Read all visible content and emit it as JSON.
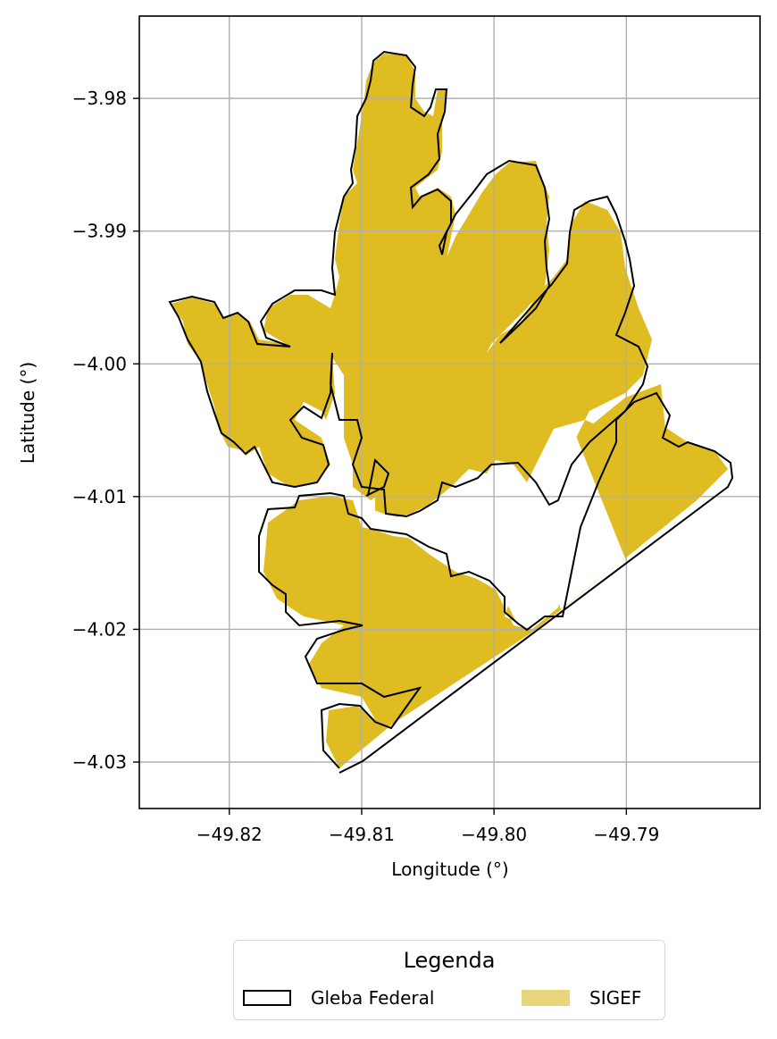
{
  "chart_data": {
    "type": "map",
    "title": "",
    "xlabel": "Longitude (°)",
    "ylabel": "Latitude (°)",
    "xlim": [
      -49.8268,
      -49.7799
    ],
    "ylim": [
      -4.0335,
      -3.9738
    ],
    "xticks": [
      -49.82,
      -49.81,
      -49.8,
      -49.79
    ],
    "xtick_labels": [
      "−49.82",
      "−49.81",
      "−49.80",
      "−49.79"
    ],
    "yticks": [
      -3.98,
      -3.99,
      -4.0,
      -4.01,
      -4.02,
      -4.03
    ],
    "ytick_labels": [
      "−3.98",
      "−3.99",
      "−4.00",
      "−4.01",
      "−4.02",
      "−4.03"
    ],
    "grid": true,
    "legend_placement": "bottom-center, below axes",
    "series": [
      {
        "name": "Gleba Federal",
        "style": "outline",
        "edge_color": "#000000",
        "polygon": [
          [
            -49.8114,
            -4.0306
          ],
          [
            -49.813,
            -4.0289
          ],
          [
            -49.8139,
            -4.0265
          ],
          [
            -49.8124,
            -4.0254
          ],
          [
            -49.8093,
            -4.0258
          ],
          [
            -49.8081,
            -4.0275
          ],
          [
            -49.8071,
            -4.0279
          ],
          [
            -49.809,
            -4.0246
          ],
          [
            -49.8141,
            -4.0243
          ],
          [
            -49.815,
            -4.0225
          ],
          [
            -49.8142,
            -4.0207
          ],
          [
            -49.8121,
            -4.0197
          ],
          [
            -49.8132,
            -4.0198
          ],
          [
            -49.8146,
            -4.0202
          ],
          [
            -49.8163,
            -4.0188
          ],
          [
            -49.8176,
            -4.0176
          ],
          [
            -49.818,
            -4.0155
          ],
          [
            -49.8174,
            -4.013
          ],
          [
            -49.816,
            -4.0106
          ],
          [
            -49.814,
            -4.0103
          ],
          [
            -49.8127,
            -4.0102
          ],
          [
            -49.8115,
            -4.0095
          ],
          [
            -49.8093,
            -4.0123
          ],
          [
            -49.8063,
            -4.0129
          ],
          [
            -49.8025,
            -4.0136
          ],
          [
            -49.8003,
            -4.0143
          ],
          [
            -49.797,
            -4.0156
          ],
          [
            -49.798,
            -4.0174
          ],
          [
            -49.8022,
            -4.0143
          ],
          [
            -49.8039,
            -4.0142
          ],
          [
            -49.807,
            -4.0138
          ],
          [
            -49.8101,
            -4.0104
          ],
          [
            -49.81,
            -4.0078
          ],
          [
            -49.8087,
            -4.0065
          ],
          [
            -49.804,
            -4.009
          ],
          [
            -49.8003,
            -4.0084
          ],
          [
            -49.796,
            -4.0071
          ],
          [
            -49.7932,
            -4.0047
          ],
          [
            -49.7896,
            -4.0027
          ],
          [
            -49.7877,
            -4.0002
          ],
          [
            -49.7858,
            -3.999
          ],
          [
            -49.7875,
            -3.998
          ],
          [
            -49.79,
            -3.9965
          ],
          [
            -49.7896,
            -3.9925
          ],
          [
            -49.7906,
            -3.9895
          ],
          [
            -49.7921,
            -3.9872
          ],
          [
            -49.7932,
            -3.986
          ],
          [
            -49.7958,
            -3.9842
          ],
          [
            -49.799,
            -3.9832
          ],
          [
            -49.8015,
            -3.9862
          ],
          [
            -49.8036,
            -3.9857
          ],
          [
            -49.8047,
            -3.9842
          ],
          [
            -49.8061,
            -3.9853
          ],
          [
            -49.8084,
            -3.9855
          ],
          [
            -49.8098,
            -3.9814
          ],
          [
            -49.808,
            -3.9775
          ],
          [
            -49.808,
            -3.976
          ],
          [
            -49.8102,
            -3.9757
          ],
          [
            -49.8123,
            -3.9793
          ],
          [
            -49.813,
            -3.982
          ],
          [
            -49.8158,
            -3.9845
          ],
          [
            -49.8178,
            -3.9882
          ],
          [
            -49.8195,
            -3.991
          ],
          [
            -49.8221,
            -3.9918
          ],
          [
            -49.825,
            -3.9955
          ],
          [
            -49.824,
            -3.996
          ],
          [
            -49.8203,
            -3.9967
          ],
          [
            -49.8197,
            -3.999
          ],
          [
            -49.8196,
            -4.003
          ],
          [
            -49.8186,
            -4.0056
          ],
          [
            -49.8171,
            -4.0078
          ],
          [
            -49.8141,
            -4.0089
          ],
          [
            -49.8123,
            -4.0056
          ],
          [
            -49.8118,
            -4.0022
          ],
          [
            -49.8133,
            -3.9985
          ],
          [
            -49.8121,
            -3.9968
          ],
          [
            -49.8093,
            -3.9955
          ],
          [
            -49.805,
            -3.995
          ],
          [
            -49.8005,
            -3.9952
          ],
          [
            -49.7981,
            -3.9975
          ],
          [
            -49.7955,
            -4.0005
          ],
          [
            -49.7922,
            -4.003
          ],
          [
            -49.79,
            -4.004
          ],
          [
            -49.786,
            -4.006
          ],
          [
            -49.7833,
            -4.0078
          ],
          [
            -49.7836,
            -4.0092
          ],
          [
            -49.8108,
            -4.0303
          ],
          [
            -49.8114,
            -4.0306
          ]
        ]
      },
      {
        "name": "SIGEF",
        "style": "fill",
        "fill_color": "#dfbd22"
      }
    ]
  },
  "legend": {
    "title": "Legenda",
    "items": [
      {
        "label": "Gleba Federal"
      },
      {
        "label": "SIGEF"
      }
    ]
  }
}
